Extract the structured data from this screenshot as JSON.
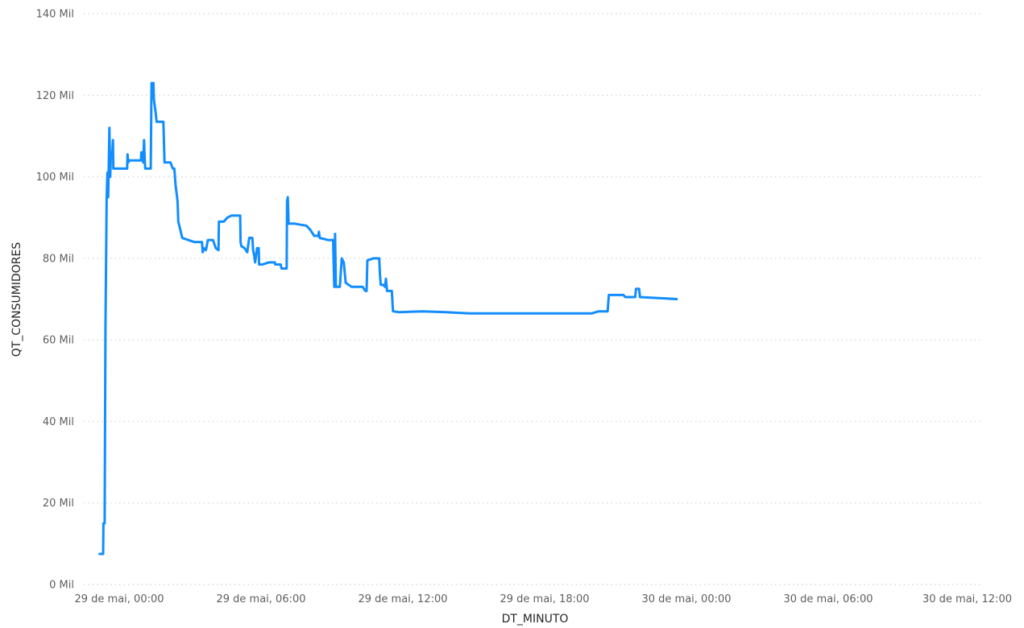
{
  "chart_data": {
    "type": "line",
    "title": "",
    "xlabel": "DT_MINUTO",
    "ylabel": "QT_CONSUMIDORES",
    "x_ticks": [
      {
        "t": 0,
        "label": "29 de mai, 00:00"
      },
      {
        "t": 360,
        "label": "29 de mai, 06:00"
      },
      {
        "t": 720,
        "label": "29 de mai, 12:00"
      },
      {
        "t": 1080,
        "label": "29 de mai, 18:00"
      },
      {
        "t": 1440,
        "label": "30 de mai, 00:00"
      },
      {
        "t": 1800,
        "label": "30 de mai, 06:00"
      },
      {
        "t": 2160,
        "label": "30 de mai, 12:00"
      }
    ],
    "y_ticks": [
      {
        "v": 0,
        "label": "0 Mil"
      },
      {
        "v": 20000,
        "label": "20 Mil"
      },
      {
        "v": 40000,
        "label": "40 Mil"
      },
      {
        "v": 60000,
        "label": "60 Mil"
      },
      {
        "v": 80000,
        "label": "80 Mil"
      },
      {
        "v": 100000,
        "label": "100 Mil"
      },
      {
        "v": 120000,
        "label": "120 Mil"
      },
      {
        "v": 140000,
        "label": "140 Mil"
      }
    ],
    "ylim": [
      0,
      140000
    ],
    "grid": true,
    "legend": "none",
    "series": [
      {
        "color": "#118dff",
        "x_unit": "minutes after 29 de mai, 00:00",
        "points": [
          [
            -50,
            7500
          ],
          [
            -41,
            7500
          ],
          [
            -40,
            15000
          ],
          [
            -37,
            15000
          ],
          [
            -35,
            63000
          ],
          [
            -32,
            95000
          ],
          [
            -30,
            101000
          ],
          [
            -28,
            95000
          ],
          [
            -25,
            112000
          ],
          [
            -23,
            100000
          ],
          [
            -21,
            106000
          ],
          [
            -18,
            105000
          ],
          [
            -16,
            109000
          ],
          [
            -15,
            102000
          ],
          [
            0,
            102000
          ],
          [
            10,
            102000
          ],
          [
            20,
            102000
          ],
          [
            21,
            105500
          ],
          [
            23,
            103500
          ],
          [
            25,
            104000
          ],
          [
            55,
            104000
          ],
          [
            56,
            106000
          ],
          [
            60,
            106000
          ],
          [
            61,
            103500
          ],
          [
            63,
            109000
          ],
          [
            65,
            103500
          ],
          [
            66,
            102000
          ],
          [
            80,
            102000
          ],
          [
            82,
            123000
          ],
          [
            87,
            123000
          ],
          [
            88,
            119000
          ],
          [
            92,
            116000
          ],
          [
            95,
            113500
          ],
          [
            112,
            113500
          ],
          [
            115,
            103500
          ],
          [
            130,
            103500
          ],
          [
            136,
            102000
          ],
          [
            140,
            102000
          ],
          [
            143,
            98000
          ],
          [
            148,
            94000
          ],
          [
            150,
            89000
          ],
          [
            155,
            87000
          ],
          [
            160,
            85000
          ],
          [
            175,
            84500
          ],
          [
            190,
            84000
          ],
          [
            205,
            84000
          ],
          [
            210,
            84000
          ],
          [
            212,
            81500
          ],
          [
            215,
            82500
          ],
          [
            220,
            82000
          ],
          [
            225,
            84500
          ],
          [
            238,
            84500
          ],
          [
            245,
            82500
          ],
          [
            252,
            82000
          ],
          [
            253,
            89000
          ],
          [
            265,
            89000
          ],
          [
            275,
            90000
          ],
          [
            285,
            90500
          ],
          [
            307,
            90500
          ],
          [
            308,
            84000
          ],
          [
            310,
            83000
          ],
          [
            318,
            82500
          ],
          [
            325,
            81500
          ],
          [
            330,
            85000
          ],
          [
            338,
            85000
          ],
          [
            340,
            82000
          ],
          [
            343,
            80500
          ],
          [
            345,
            79000
          ],
          [
            350,
            82500
          ],
          [
            354,
            82500
          ],
          [
            355,
            78500
          ],
          [
            363,
            78500
          ],
          [
            380,
            79000
          ],
          [
            395,
            79000
          ],
          [
            396,
            78500
          ],
          [
            410,
            78500
          ],
          [
            412,
            77500
          ],
          [
            425,
            77500
          ],
          [
            426,
            94000
          ],
          [
            428,
            95000
          ],
          [
            430,
            88500
          ],
          [
            445,
            88500
          ],
          [
            475,
            88000
          ],
          [
            485,
            87000
          ],
          [
            495,
            85500
          ],
          [
            505,
            85500
          ],
          [
            507,
            86500
          ],
          [
            509,
            85000
          ],
          [
            530,
            84500
          ],
          [
            543,
            84500
          ],
          [
            544,
            80000
          ],
          [
            546,
            73000
          ],
          [
            548,
            86000
          ],
          [
            550,
            73000
          ],
          [
            560,
            73000
          ],
          [
            565,
            80000
          ],
          [
            570,
            79000
          ],
          [
            575,
            74000
          ],
          [
            590,
            73000
          ],
          [
            618,
            73000
          ],
          [
            625,
            72000
          ],
          [
            628,
            72000
          ],
          [
            630,
            79500
          ],
          [
            645,
            80000
          ],
          [
            660,
            80000
          ],
          [
            662,
            76000
          ],
          [
            664,
            73500
          ],
          [
            670,
            73500
          ],
          [
            675,
            73000
          ],
          [
            677,
            75000
          ],
          [
            680,
            72000
          ],
          [
            692,
            72000
          ],
          [
            695,
            67000
          ],
          [
            710,
            66800
          ],
          [
            770,
            67000
          ],
          [
            830,
            66800
          ],
          [
            890,
            66500
          ],
          [
            1030,
            66500
          ],
          [
            1155,
            66500
          ],
          [
            1200,
            66500
          ],
          [
            1217,
            67000
          ],
          [
            1240,
            67000
          ],
          [
            1243,
            71000
          ],
          [
            1280,
            71000
          ],
          [
            1285,
            70500
          ],
          [
            1300,
            70500
          ],
          [
            1310,
            70500
          ],
          [
            1312,
            72500
          ],
          [
            1320,
            72500
          ],
          [
            1322,
            70500
          ],
          [
            1380,
            70200
          ],
          [
            1415,
            70000
          ]
        ]
      }
    ]
  }
}
